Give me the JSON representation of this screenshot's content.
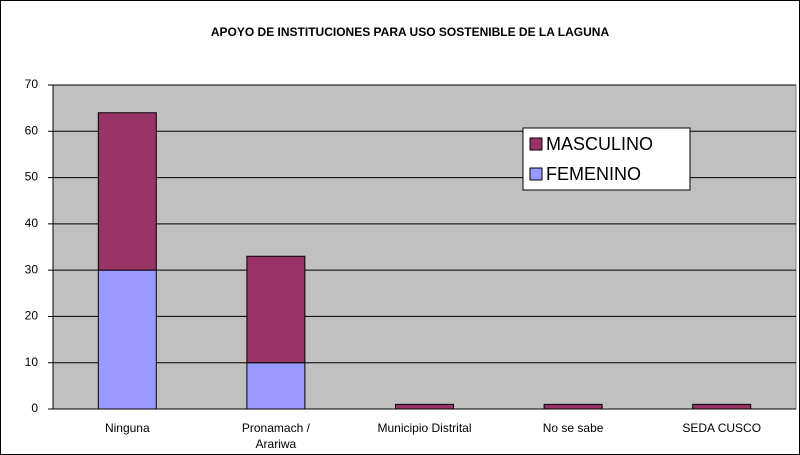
{
  "chart_data": {
    "type": "stacked_bar",
    "title": "APOYO DE INSTITUCIONES PARA USO SOSTENIBLE DE LA LAGUNA",
    "categories": [
      "Ninguna",
      "Pronamach / Arariwa",
      "Municipio Distrital",
      "No se sabe",
      "SEDA CUSCO"
    ],
    "series": [
      {
        "name": "FEMENINO",
        "color": "#9999ff",
        "values": [
          30,
          10,
          0,
          0,
          0
        ]
      },
      {
        "name": "MASCULINO",
        "color": "#993366",
        "values": [
          34,
          23,
          1,
          1,
          1
        ]
      }
    ],
    "ylim": [
      0,
      70
    ],
    "yticks": [
      0,
      10,
      20,
      30,
      40,
      50,
      60,
      70
    ],
    "grid": true,
    "legend": "upper right"
  }
}
